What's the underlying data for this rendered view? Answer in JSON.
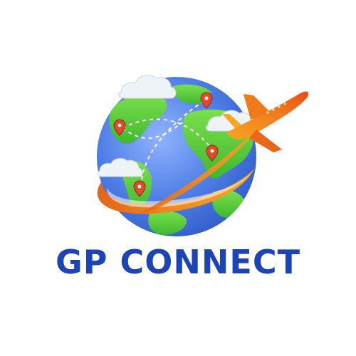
{
  "brand": {
    "name": "GP CONNECT",
    "color": "#1b44b8"
  },
  "icons": [
    "globe-icon",
    "airplane-icon",
    "cloud-icon",
    "map-pin-icon"
  ],
  "colors": {
    "ocean": "#4f7fe6",
    "land": "#5ed13d",
    "plane": "#f07a1a",
    "pin": "#e04a2a",
    "cloud": "#eef3f8"
  }
}
